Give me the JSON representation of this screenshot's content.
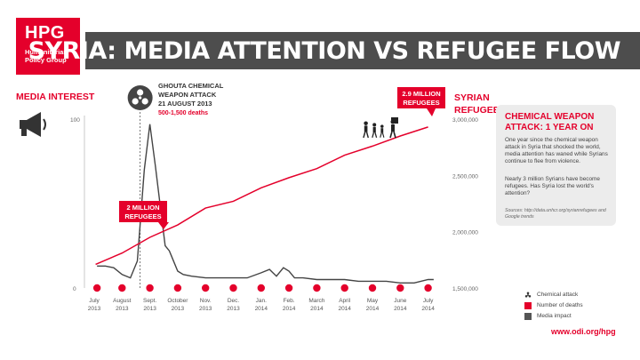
{
  "org": {
    "logo_text": "HPG",
    "name_line1": "Humanitarian",
    "name_line2": "Policy Group"
  },
  "header": {
    "title": "SYRIA: MEDIA ATTENTION VS REFUGEE FLOW"
  },
  "chart_data": {
    "type": "line",
    "title": "SYRIA: MEDIA ATTENTION VS REFUGEE FLOW",
    "xlabel": "",
    "x_ticks": [
      {
        "month": "July",
        "year": "2013"
      },
      {
        "month": "August",
        "year": "2013"
      },
      {
        "month": "Sept.",
        "year": "2013"
      },
      {
        "month": "October",
        "year": "2013"
      },
      {
        "month": "Nov.",
        "year": "2013"
      },
      {
        "month": "Dec.",
        "year": "2013"
      },
      {
        "month": "Jan.",
        "year": "2014"
      },
      {
        "month": "Feb.",
        "year": "2014"
      },
      {
        "month": "March",
        "year": "2014"
      },
      {
        "month": "April",
        "year": "2014"
      },
      {
        "month": "May",
        "year": "2014"
      },
      {
        "month": "June",
        "year": "2014"
      },
      {
        "month": "July",
        "year": "2014"
      }
    ],
    "left_axis": {
      "label": "MEDIA INTEREST",
      "range": [
        0,
        100
      ],
      "ticks": [
        "0",
        "100"
      ]
    },
    "right_axis": {
      "label_line1": "SYRIAN",
      "label_line2": "REFUGEES",
      "range": [
        1500000,
        3000000
      ],
      "ticks": [
        "1,500,000",
        "2,000,000",
        "2,500,000",
        "3,000,000"
      ]
    },
    "series": [
      {
        "name": "Number of deaths",
        "axis": "right",
        "color": "#e4002b",
        "points": [
          [
            0.05,
            1710000
          ],
          [
            1.0,
            1810000
          ],
          [
            2.0,
            1950000
          ],
          [
            3.0,
            2060000
          ],
          [
            4.0,
            2210000
          ],
          [
            5.0,
            2270000
          ],
          [
            6.0,
            2390000
          ],
          [
            7.0,
            2480000
          ],
          [
            8.0,
            2560000
          ],
          [
            9.0,
            2680000
          ],
          [
            10.0,
            2760000
          ],
          [
            11.0,
            2850000
          ],
          [
            12.0,
            2930000
          ]
        ]
      },
      {
        "name": "Media impact",
        "axis": "left",
        "color": "#444444",
        "points": [
          [
            0.1,
            13
          ],
          [
            0.4,
            13
          ],
          [
            0.7,
            12
          ],
          [
            1.0,
            8
          ],
          [
            1.3,
            6
          ],
          [
            1.55,
            16
          ],
          [
            1.8,
            70
          ],
          [
            2.0,
            97
          ],
          [
            2.2,
            72
          ],
          [
            2.4,
            45
          ],
          [
            2.55,
            25
          ],
          [
            2.7,
            22
          ],
          [
            2.8,
            18
          ],
          [
            3.0,
            10
          ],
          [
            3.2,
            8
          ],
          [
            3.5,
            7
          ],
          [
            4.0,
            6
          ],
          [
            4.5,
            6
          ],
          [
            5.0,
            6
          ],
          [
            5.5,
            6
          ],
          [
            6.0,
            9
          ],
          [
            6.3,
            11
          ],
          [
            6.55,
            7
          ],
          [
            6.8,
            12
          ],
          [
            7.0,
            10
          ],
          [
            7.2,
            6
          ],
          [
            7.5,
            6
          ],
          [
            8.0,
            5
          ],
          [
            8.5,
            5
          ],
          [
            9.0,
            5
          ],
          [
            9.5,
            4
          ],
          [
            10.0,
            4
          ],
          [
            10.5,
            4
          ],
          [
            11.0,
            3
          ],
          [
            11.5,
            3
          ],
          [
            12.0,
            5
          ],
          [
            12.2,
            5
          ]
        ]
      }
    ],
    "death_markers_x": [
      0.1,
      1.0,
      2.0,
      3.0,
      4.0,
      5.0,
      6.0,
      7.0,
      8.0,
      9.0,
      10.0,
      11.0,
      12.0
    ],
    "attack_x": 1.65,
    "annotations": {
      "attack": {
        "line1": "GHOUTA CHEMICAL",
        "line2": "WEAPON ATTACK",
        "line3": "21 AUGUST 2013",
        "line4": "500-1,500 deaths"
      },
      "two_million": {
        "line1": "2 MILLION",
        "line2": "REFUGEES"
      },
      "two_nine_million": {
        "line1": "2.9 MILLION",
        "line2": "REFUGEES"
      }
    },
    "legend": [
      {
        "label": "Chemical attack",
        "icon": "hazard-icon"
      },
      {
        "label": "Number of deaths",
        "color": "#e4002b"
      },
      {
        "label": "Media impact",
        "color": "#555555"
      }
    ]
  },
  "sidebar": {
    "title_line1": "CHEMICAL WEAPON",
    "title_line2": "ATTACK: 1 YEAR ON",
    "para1": "One year since the chemical weapon attack in Syria that shocked the world, media attention has waned while Syrians continue to flee from violence.",
    "para2": "Nearly 3 million Syrians have become refugees. Has Syria lost the world's attention?",
    "sources": "Sources: http://data.unhcr.org/syrianrefugees and Google trends"
  },
  "footer": {
    "url": "www.odi.org/hpg"
  },
  "colors": {
    "accent": "#e4002b",
    "bar": "#4d4d4d",
    "media": "#444444"
  }
}
